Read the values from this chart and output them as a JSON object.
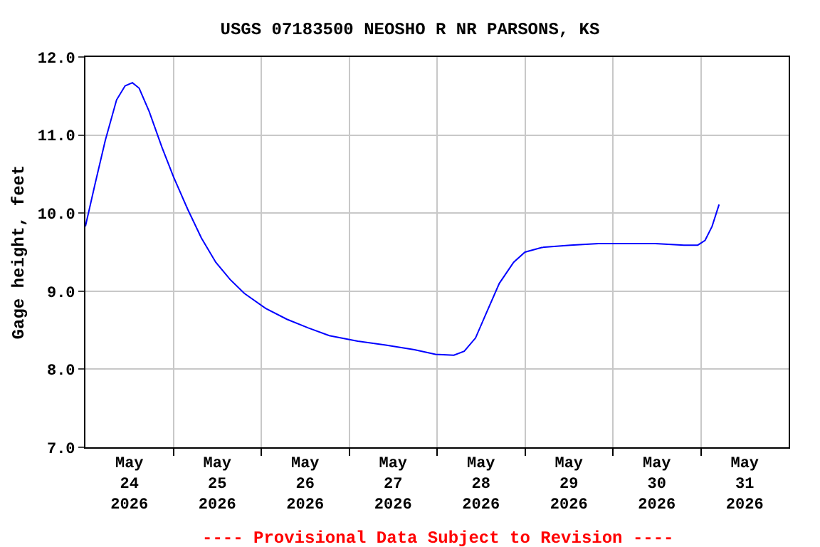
{
  "chart_data": {
    "type": "line",
    "title": "USGS 07183500 NEOSHO R NR PARSONS, KS",
    "ylabel": "Gage height, feet",
    "x": [
      "2026-05-24T00:00",
      "2026-05-24T02:40",
      "2026-05-24T05:25",
      "2026-05-24T08:30",
      "2026-05-24T10:50",
      "2026-05-24T12:50",
      "2026-05-24T14:40",
      "2026-05-24T17:25",
      "2026-05-24T20:55",
      "2026-05-25T00:00",
      "2026-05-25T03:55",
      "2026-05-25T07:40",
      "2026-05-25T11:35",
      "2026-05-25T15:30",
      "2026-05-25T19:25",
      "2026-05-26T01:10",
      "2026-05-26T07:00",
      "2026-05-26T12:50",
      "2026-05-26T18:35",
      "2026-05-27T02:20",
      "2026-05-27T10:00",
      "2026-05-27T17:50",
      "2026-05-27T23:35",
      "2026-05-28T04:35",
      "2026-05-28T07:25",
      "2026-05-28T10:30",
      "2026-05-28T13:10",
      "2026-05-28T17:00",
      "2026-05-28T20:55",
      "2026-05-29T00:00",
      "2026-05-29T04:35",
      "2026-05-29T12:25",
      "2026-05-29T20:05",
      "2026-05-30T03:55",
      "2026-05-30T11:35",
      "2026-05-30T19:25",
      "2026-05-30T23:10",
      "2026-05-31T01:10",
      "2026-05-31T03:05",
      "2026-05-31T05:00"
    ],
    "series": [
      {
        "color": "#0000ff",
        "values": [
          9.83,
          10.38,
          10.93,
          11.45,
          11.63,
          11.67,
          11.6,
          11.3,
          10.84,
          10.47,
          10.05,
          9.68,
          9.37,
          9.15,
          8.97,
          8.78,
          8.64,
          8.53,
          8.43,
          8.36,
          8.31,
          8.25,
          8.19,
          8.18,
          8.23,
          8.4,
          8.69,
          9.1,
          9.37,
          9.5,
          9.56,
          9.59,
          9.61,
          9.61,
          9.61,
          9.59,
          9.59,
          9.65,
          9.83,
          10.11
        ]
      }
    ],
    "xlim": [
      "2026-05-24T00:00",
      "2026-06-01T00:00"
    ],
    "xticks": [
      {
        "value": "2026-05-24T12:00",
        "label": "May\n24\n2026"
      },
      {
        "value": "2026-05-25T12:00",
        "label": "May\n25\n2026"
      },
      {
        "value": "2026-05-26T12:00",
        "label": "May\n26\n2026"
      },
      {
        "value": "2026-05-27T12:00",
        "label": "May\n27\n2026"
      },
      {
        "value": "2026-05-28T12:00",
        "label": "May\n28\n2026"
      },
      {
        "value": "2026-05-29T12:00",
        "label": "May\n29\n2026"
      },
      {
        "value": "2026-05-30T12:00",
        "label": "May\n30\n2026"
      },
      {
        "value": "2026-05-31T12:00",
        "label": "May\n31\n2026"
      },
      {
        "value": "2026-05-25T00:00",
        "label": null
      },
      {
        "value": "2026-05-26T00:00",
        "label": null
      },
      {
        "value": "2026-05-27T00:00",
        "label": null
      },
      {
        "value": "2026-05-28T00:00",
        "label": null
      },
      {
        "value": "2026-05-29T00:00",
        "label": null
      },
      {
        "value": "2026-05-30T00:00",
        "label": null
      },
      {
        "value": "2026-05-31T00:00",
        "label": null
      }
    ],
    "ylim": [
      7.0,
      12.0
    ],
    "yticks": [
      {
        "value": 7,
        "label": "7.0"
      },
      {
        "value": 8,
        "label": "8.0"
      },
      {
        "value": 9,
        "label": "9.0"
      },
      {
        "value": 10,
        "label": "10.0"
      },
      {
        "value": 11,
        "label": "11.0"
      },
      {
        "value": 12,
        "label": "12.0"
      }
    ],
    "grid": true,
    "legend": false,
    "annotations": [
      "---- Provisional Data Subject to Revision ----"
    ]
  }
}
